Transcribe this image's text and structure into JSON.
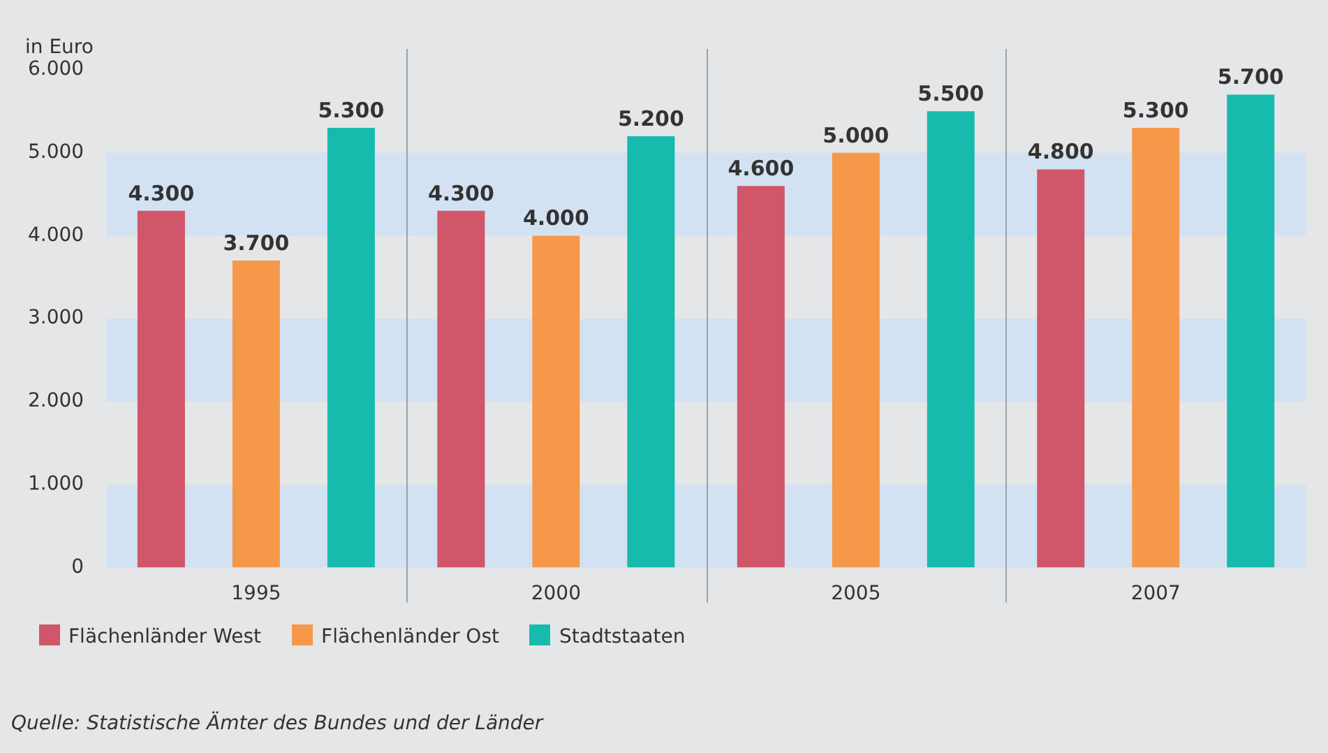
{
  "chart_data": {
    "type": "bar",
    "ylabel": "in Euro",
    "categories": [
      "1995",
      "2000",
      "2005",
      "2007"
    ],
    "series": [
      {
        "name": "Flächenländer West",
        "color": "#d0566a",
        "values": [
          4300,
          4300,
          4600,
          4800
        ]
      },
      {
        "name": "Flächenländer Ost",
        "color": "#f6984a",
        "values": [
          3700,
          4000,
          5000,
          5300
        ]
      },
      {
        "name": "Stadtstaaten",
        "color": "#16bbae",
        "values": [
          5300,
          5200,
          5500,
          5700
        ]
      }
    ],
    "ylim": [
      0,
      6000
    ],
    "yticks": [
      {
        "value": 0,
        "label": "0"
      },
      {
        "value": 1000,
        "label": "1.000"
      },
      {
        "value": 2000,
        "label": "2.000"
      },
      {
        "value": 3000,
        "label": "3.000"
      },
      {
        "value": 4000,
        "label": "4.000"
      },
      {
        "value": 5000,
        "label": "5.000"
      },
      {
        "value": 6000,
        "label": "6.000"
      }
    ],
    "value_labels": [
      [
        "4.300",
        "4.300",
        "4.600",
        "4.800"
      ],
      [
        "3.700",
        "4.000",
        "5.000",
        "5.300"
      ],
      [
        "5.300",
        "5.200",
        "5.500",
        "5.700"
      ]
    ],
    "grid": true,
    "legend": "bottom left",
    "annotations": [
      "Quelle: Statistische Ämter des Bundes und der Länder"
    ]
  }
}
